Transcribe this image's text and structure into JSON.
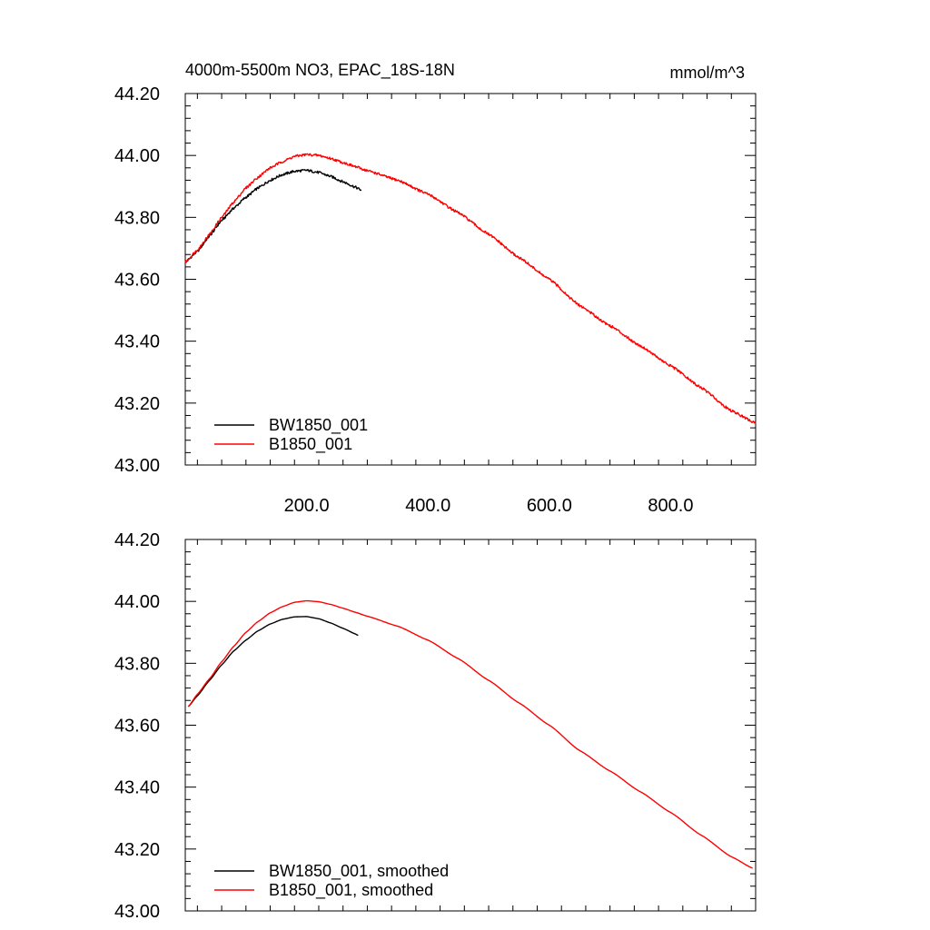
{
  "figure": {
    "title_left": "4000m-5500m NO3, EPAC_18S-18N",
    "title_right": "mmol/m^3"
  },
  "chart_data": [
    {
      "type": "line",
      "title": "4000m-5500m NO3, EPAC_18S-18N",
      "units": "mmol/m^3",
      "xlim": [
        0,
        940
      ],
      "ylim": [
        43.0,
        44.2
      ],
      "x_ticks": [
        200,
        400,
        600,
        800
      ],
      "x_tick_labels": [
        "200.0",
        "400.0",
        "600.0",
        "800.0"
      ],
      "y_ticks": [
        43.0,
        43.2,
        43.4,
        43.6,
        43.8,
        44.0,
        44.2
      ],
      "y_tick_labels": [
        "43.00",
        "43.20",
        "43.40",
        "43.60",
        "43.80",
        "44.00",
        "44.20"
      ],
      "legend_position": "bottom-left",
      "grid": false,
      "series": [
        {
          "name": "BW1850_001",
          "color": "#000000",
          "noisy": true,
          "x": [
            0,
            20,
            40,
            60,
            80,
            100,
            120,
            140,
            160,
            180,
            200,
            220,
            240,
            260,
            280,
            290
          ],
          "y": [
            43.655,
            43.69,
            43.74,
            43.79,
            43.83,
            43.865,
            43.895,
            43.92,
            43.938,
            43.949,
            43.952,
            43.945,
            43.932,
            43.915,
            43.898,
            43.888
          ]
        },
        {
          "name": "B1850_001",
          "color": "#ff0000",
          "noisy": true,
          "x": [
            0,
            20,
            40,
            60,
            80,
            100,
            120,
            140,
            160,
            180,
            200,
            220,
            240,
            260,
            280,
            300,
            350,
            400,
            450,
            500,
            550,
            600,
            650,
            700,
            750,
            800,
            850,
            900,
            940
          ],
          "y": [
            43.655,
            43.695,
            43.745,
            43.8,
            43.85,
            43.895,
            43.93,
            43.96,
            43.98,
            43.997,
            44.003,
            44.0,
            43.99,
            43.977,
            43.964,
            43.951,
            43.92,
            43.875,
            43.815,
            43.745,
            43.67,
            43.6,
            43.515,
            43.45,
            43.385,
            43.32,
            43.25,
            43.175,
            43.135
          ]
        }
      ]
    },
    {
      "type": "line",
      "xlim": [
        0,
        940
      ],
      "ylim": [
        43.0,
        44.2
      ],
      "x_ticks": [
        200,
        400,
        600,
        800
      ],
      "y_ticks": [
        43.0,
        43.2,
        43.4,
        43.6,
        43.8,
        44.0,
        44.2
      ],
      "y_tick_labels": [
        "43.00",
        "43.20",
        "43.40",
        "43.60",
        "43.80",
        "44.00",
        "44.20"
      ],
      "legend_position": "bottom-left",
      "grid": false,
      "series": [
        {
          "name": "BW1850_001, smoothed",
          "color": "#000000",
          "noisy": false,
          "x": [
            5,
            20,
            40,
            60,
            80,
            100,
            120,
            140,
            160,
            180,
            200,
            220,
            240,
            260,
            280,
            285
          ],
          "y": [
            43.66,
            43.695,
            43.745,
            43.795,
            43.84,
            43.875,
            43.905,
            43.927,
            43.942,
            43.95,
            43.951,
            43.944,
            43.93,
            43.913,
            43.895,
            43.89
          ]
        },
        {
          "name": "B1850_001, smoothed",
          "color": "#ff0000",
          "noisy": false,
          "x": [
            5,
            20,
            40,
            60,
            80,
            100,
            120,
            140,
            160,
            180,
            200,
            220,
            240,
            260,
            280,
            300,
            350,
            400,
            450,
            500,
            550,
            600,
            650,
            700,
            750,
            800,
            850,
            900,
            935
          ],
          "y": [
            43.66,
            43.7,
            43.75,
            43.805,
            43.855,
            43.9,
            43.935,
            43.963,
            43.983,
            43.997,
            44.002,
            43.999,
            43.99,
            43.978,
            43.965,
            43.952,
            43.92,
            43.875,
            43.815,
            43.745,
            43.672,
            43.6,
            43.518,
            43.452,
            43.385,
            43.318,
            43.245,
            43.175,
            43.138
          ]
        }
      ]
    }
  ]
}
